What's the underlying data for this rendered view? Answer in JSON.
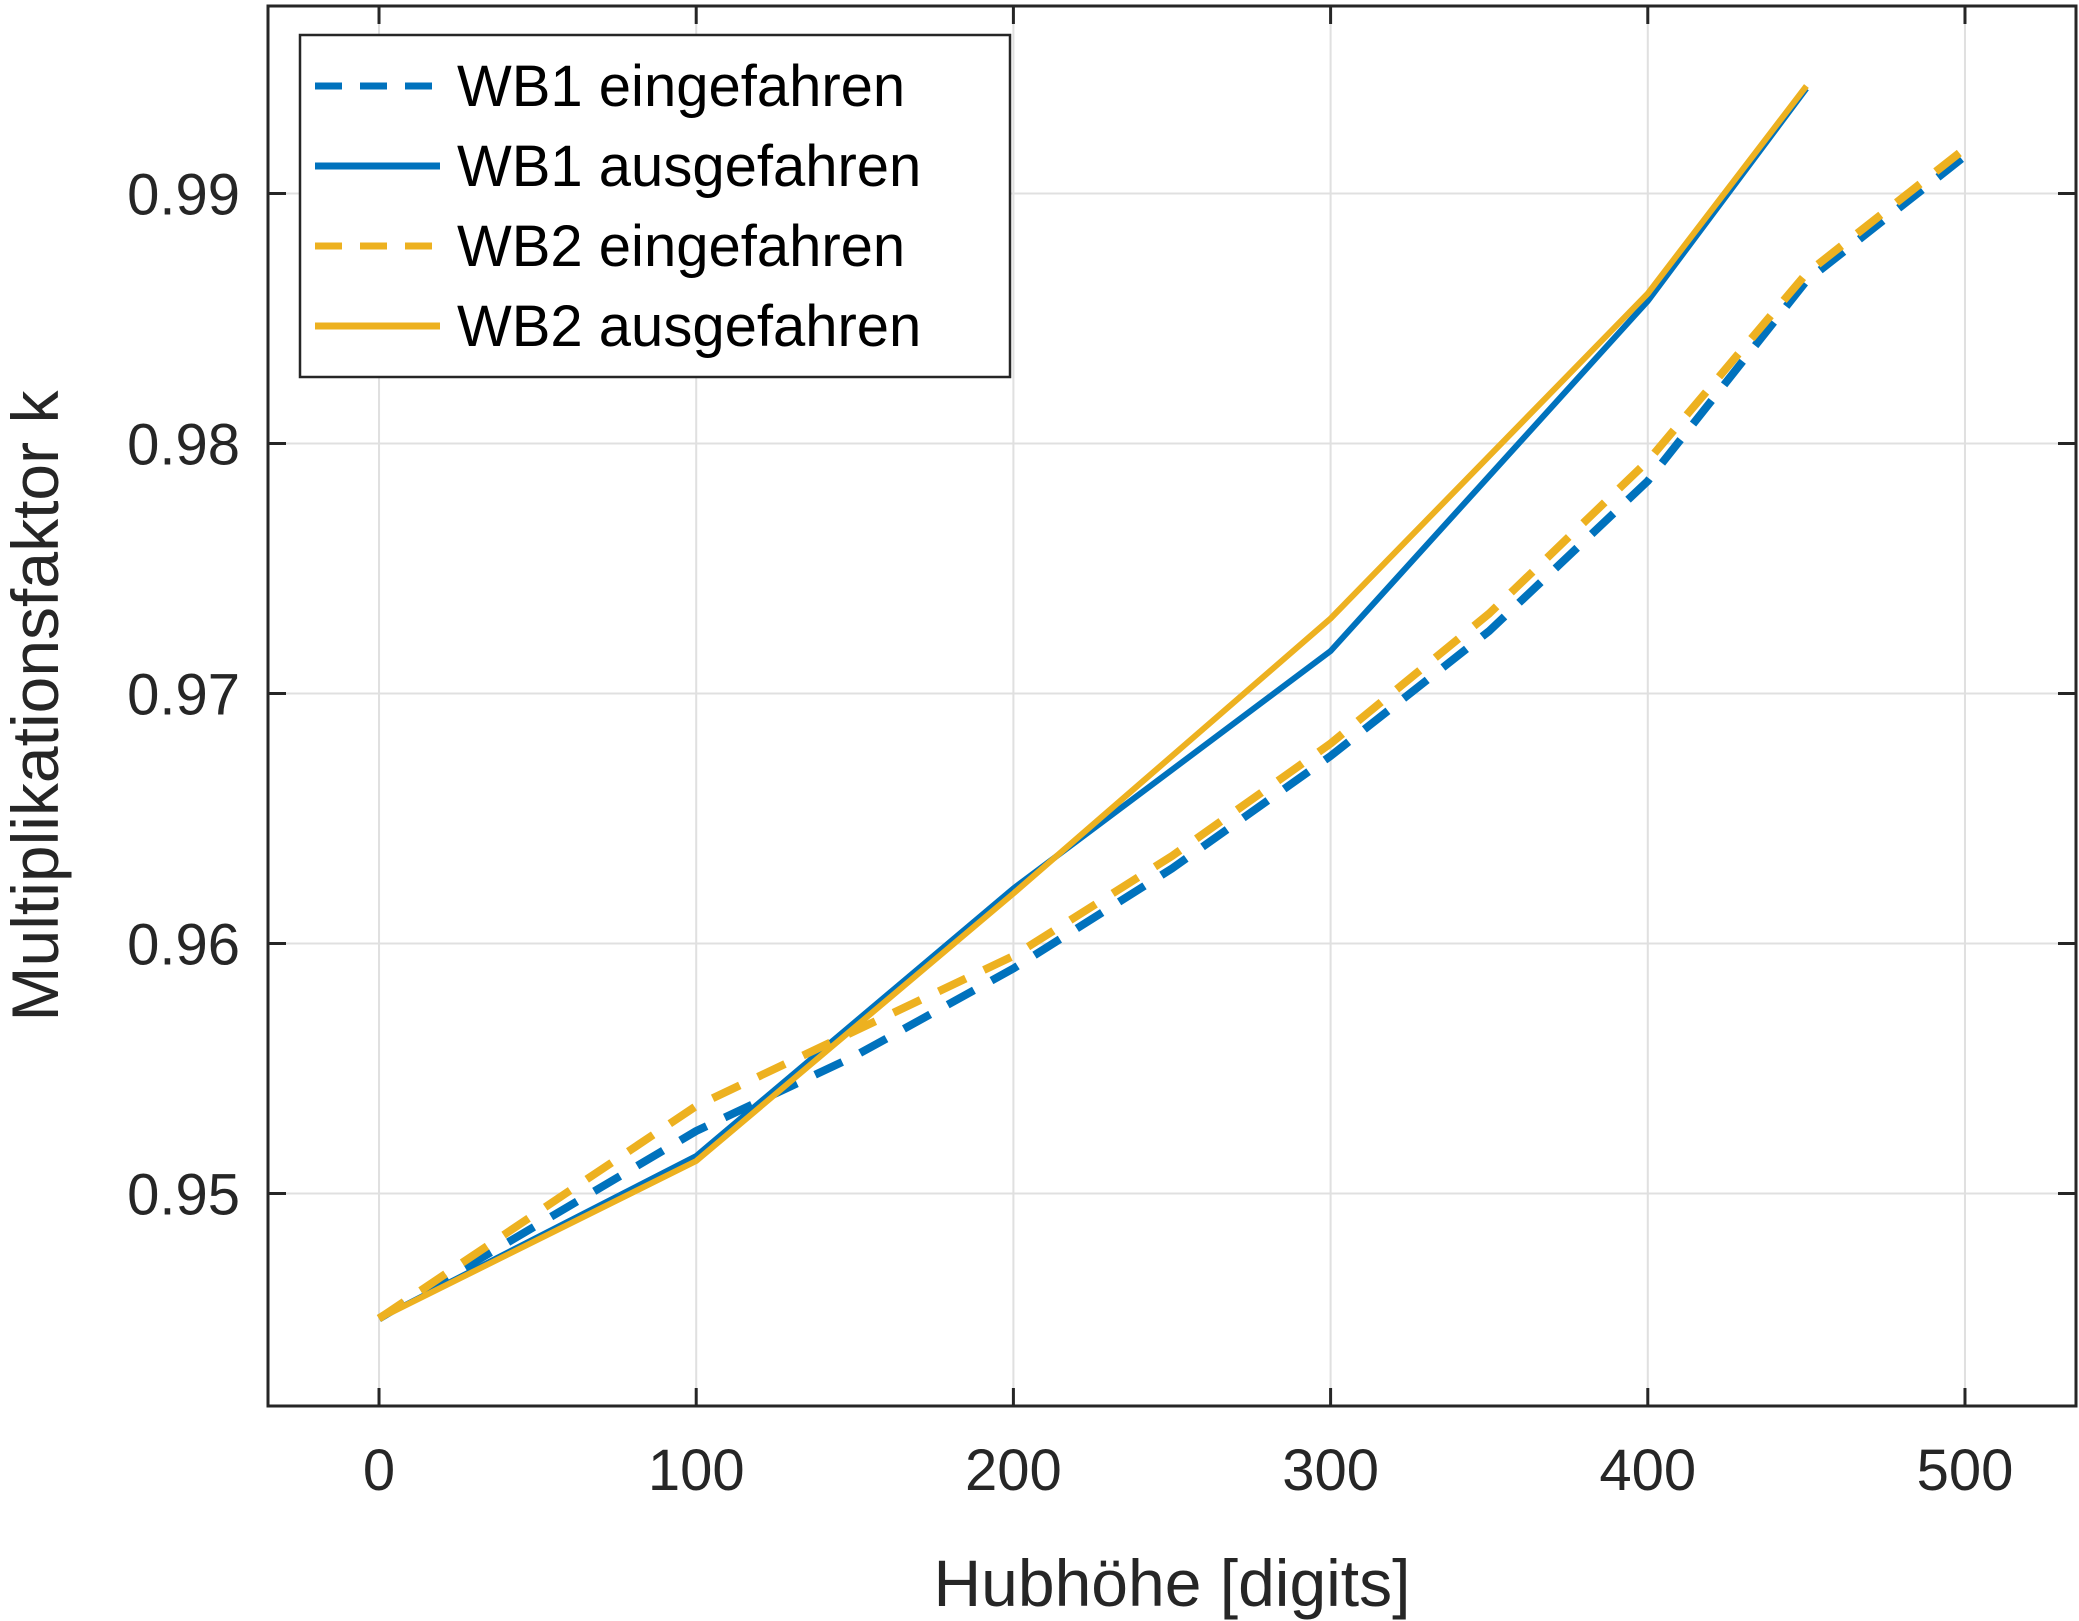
{
  "chart_data": {
    "type": "line",
    "title": "",
    "xlabel": "Hubhöhe [digits]",
    "ylabel": "Multiplikationsfaktor k",
    "xlim": [
      -35,
      535
    ],
    "ylim": [
      0.9415,
      0.9975
    ],
    "xticks": [
      0,
      100,
      200,
      300,
      400,
      500
    ],
    "xtick_labels": [
      "0",
      "100",
      "200",
      "300",
      "400",
      "500"
    ],
    "yticks": [
      0.95,
      0.96,
      0.97,
      0.98,
      0.99
    ],
    "ytick_labels": [
      "0.95",
      "0.96",
      "0.97",
      "0.98",
      "0.99"
    ],
    "grid": true,
    "legend_position": "top-left",
    "series": [
      {
        "name": "WB1 eingefahren",
        "color": "#0072BD",
        "style": "dashed",
        "x": [
          0,
          100,
          150,
          200,
          250,
          300,
          350,
          400,
          450,
          500
        ],
        "y": [
          0.945,
          0.9525,
          0.9555,
          0.959,
          0.963,
          0.9675,
          0.9725,
          0.9785,
          0.9865,
          0.9915
        ]
      },
      {
        "name": "WB1 ausgefahren",
        "color": "#0072BD",
        "style": "solid",
        "x": [
          0,
          100,
          200,
          300,
          400,
          450
        ],
        "y": [
          0.945,
          0.9515,
          0.9622,
          0.9717,
          0.9857,
          0.9942
        ]
      },
      {
        "name": "WB2 eingefahren",
        "color": "#EDB120",
        "style": "dashed",
        "x": [
          0,
          100,
          150,
          200,
          250,
          300,
          350,
          400,
          450,
          500
        ],
        "y": [
          0.945,
          0.9535,
          0.9565,
          0.9595,
          0.9635,
          0.968,
          0.9732,
          0.9793,
          0.9868,
          0.9918
        ]
      },
      {
        "name": "WB2 ausgefahren",
        "color": "#EDB120",
        "style": "solid",
        "x": [
          0,
          100,
          200,
          300,
          400,
          450
        ],
        "y": [
          0.945,
          0.9513,
          0.962,
          0.973,
          0.986,
          0.9943
        ]
      }
    ]
  }
}
